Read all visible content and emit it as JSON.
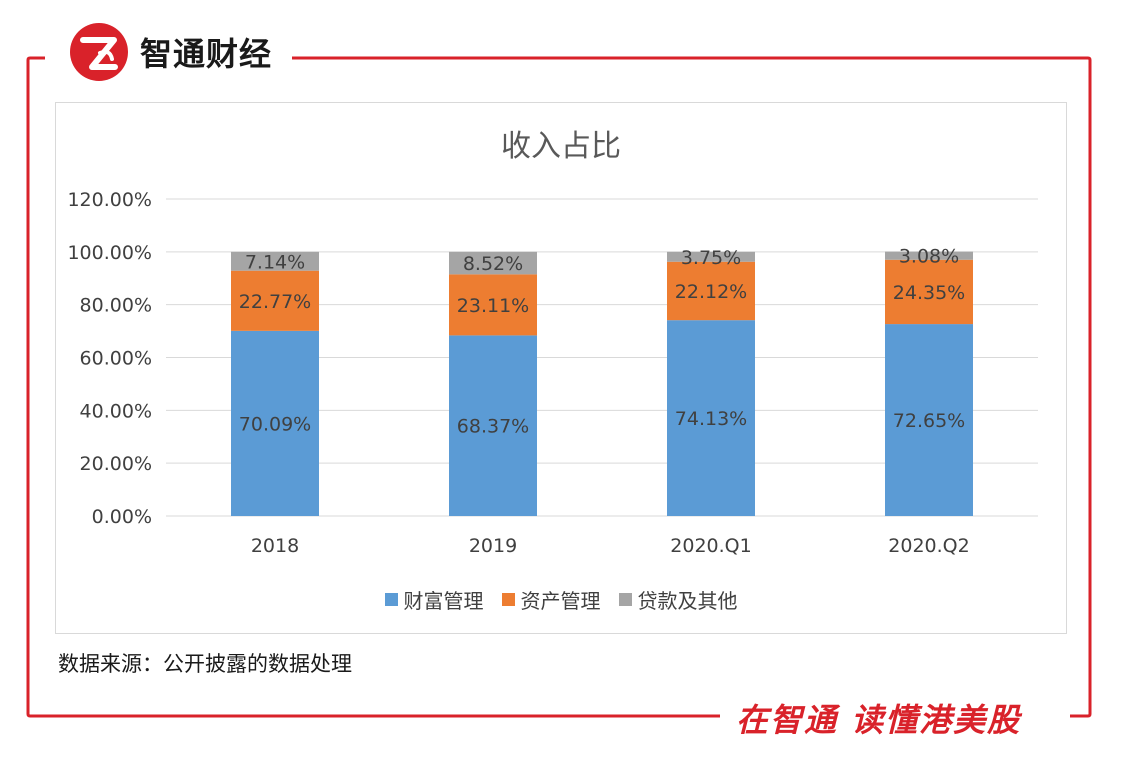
{
  "brand": {
    "logo_glyph": "Z",
    "name": "智通财经",
    "color": "#d9222a"
  },
  "slogan": "在智通 读懂港美股",
  "source": "数据来源：公开披露的数据处理",
  "chart_data": {
    "type": "bar",
    "stacked": true,
    "title": "收入占比",
    "categories": [
      "2018",
      "2019",
      "2020.Q1",
      "2020.Q2"
    ],
    "series": [
      {
        "name": "财富管理",
        "color": "#5b9bd5",
        "values": [
          70.09,
          68.37,
          74.13,
          72.65
        ],
        "labels": [
          "70.09%",
          "68.37%",
          "74.13%",
          "72.65%"
        ]
      },
      {
        "name": "资产管理",
        "color": "#ed7d31",
        "values": [
          22.77,
          23.11,
          22.12,
          24.35
        ],
        "labels": [
          "22.77%",
          "23.11%",
          "22.12%",
          "24.35%"
        ]
      },
      {
        "name": "贷款及其他",
        "color": "#a5a5a5",
        "values": [
          7.14,
          8.52,
          3.75,
          3.08
        ],
        "labels": [
          "7.14%",
          "8.52%",
          "3.75%",
          "3.08%"
        ]
      }
    ],
    "yticks": [
      "0.00%",
      "20.00%",
      "40.00%",
      "60.00%",
      "80.00%",
      "100.00%",
      "120.00%"
    ],
    "ylim": [
      0,
      120
    ],
    "ystep": 20,
    "grid": true,
    "legend_position": "bottom"
  }
}
